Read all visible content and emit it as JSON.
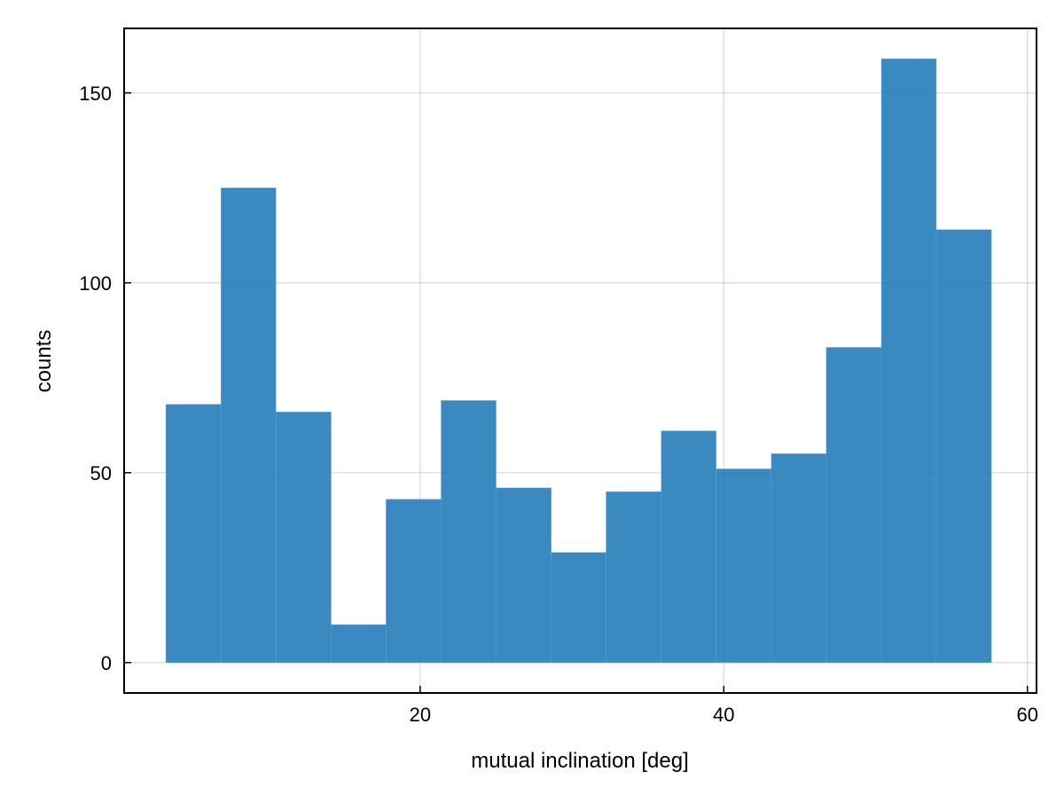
{
  "chart_data": {
    "type": "bar",
    "histogram": true,
    "bin_edges": [
      3.25,
      6.88,
      10.5,
      14.13,
      17.75,
      21.38,
      25.0,
      28.63,
      32.25,
      35.88,
      39.5,
      43.13,
      46.75,
      50.38,
      54.0,
      57.63
    ],
    "values": [
      68,
      125,
      66,
      10,
      43,
      69,
      46,
      29,
      45,
      61,
      51,
      55,
      83,
      159,
      114
    ],
    "title": "",
    "xlabel": "mutual inclination [deg]",
    "ylabel": "counts",
    "xlim": [
      0.5,
      60.6
    ],
    "ylim": [
      -8,
      167
    ],
    "xticks": [
      20,
      40,
      60
    ],
    "yticks": [
      0,
      50,
      100,
      150
    ],
    "grid": true,
    "bar_color": "#1f7ab8"
  }
}
